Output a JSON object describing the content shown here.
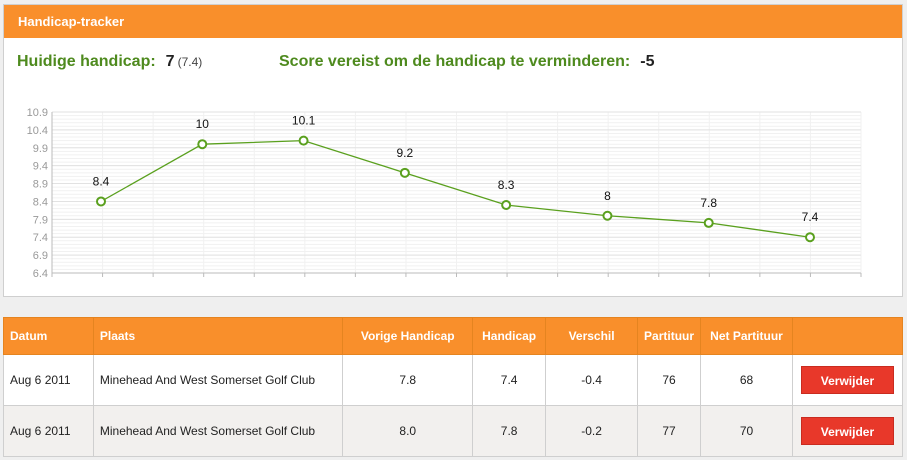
{
  "header": {
    "title": "Handicap-tracker"
  },
  "stats": {
    "current_label": "Huidige handicap:",
    "current_value": "7",
    "current_exact": "(7.4)",
    "required_label": "Score vereist om de handicap te verminderen:",
    "required_value": "-5"
  },
  "chart_data": {
    "type": "line",
    "values": [
      8.4,
      10,
      10.1,
      9.2,
      8.3,
      8,
      7.8,
      7.4
    ],
    "data_labels": [
      "8.4",
      "10",
      "10.1",
      "9.2",
      "8.3",
      "8",
      "7.8",
      "7.4"
    ],
    "yticks": [
      "10.9",
      "10.4",
      "9.9",
      "9.4",
      "8.9",
      "8.4",
      "7.9",
      "7.4",
      "6.9",
      "6.4"
    ],
    "ylim": [
      6.4,
      10.9
    ],
    "grid": true,
    "line_color": "#5aa01e"
  },
  "table": {
    "columns": [
      "Datum",
      "Plaats",
      "Vorige Handicap",
      "Handicap",
      "Verschil",
      "Partituur",
      "Net Partituur",
      ""
    ],
    "rows": [
      {
        "date": "Aug 6 2011",
        "place": "Minehead And West Somerset Golf Club",
        "prev": "7.8",
        "hcp": "7.4",
        "diff": "-0.4",
        "score": "76",
        "net": "68",
        "action": "Verwijder"
      },
      {
        "date": "Aug 6 2011",
        "place": "Minehead And West Somerset Golf Club",
        "prev": "8.0",
        "hcp": "7.8",
        "diff": "-0.2",
        "score": "77",
        "net": "70",
        "action": "Verwijder"
      }
    ]
  }
}
